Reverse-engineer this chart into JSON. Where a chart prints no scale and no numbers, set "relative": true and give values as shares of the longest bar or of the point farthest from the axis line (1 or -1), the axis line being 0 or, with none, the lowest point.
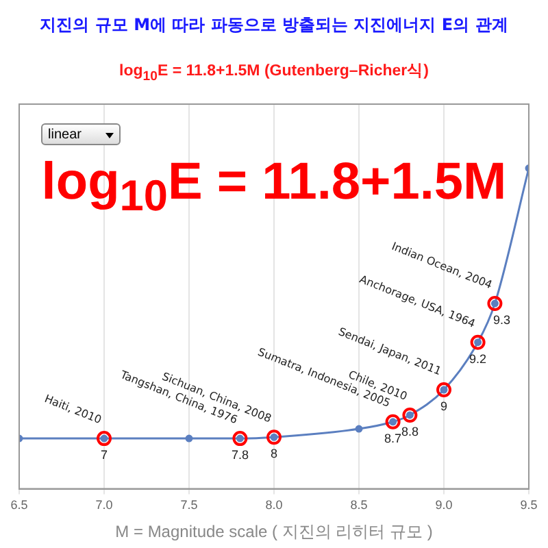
{
  "chart_data": {
    "type": "line",
    "title": "지진의 규모 M에 따라 파동으로 방출되는 지진에너지 E의 관계",
    "subtitle": "log$_{10}$E = 11.8+1.5M (Gutenberg–Richer식)",
    "xlabel": "M = Magnitude scale ( 지진의 리히터 규모 )",
    "relative": true,
    "xlim": [
      6.5,
      9.5
    ],
    "xticks": [
      6.5,
      {
        "value": 7,
        "label": "7.0"
      },
      7.5,
      {
        "value": 8,
        "label": "8.0"
      },
      8.5,
      {
        "value": 9,
        "label": "9.0"
      },
      9.5
    ],
    "grid": "x",
    "legend": false,
    "series": [
      {
        "color": "#5b7fc0",
        "marker": "circle",
        "x": [
          6.5,
          7,
          7.5,
          7.8,
          8,
          8.5,
          8.7,
          8.8,
          9,
          9.2,
          9.3,
          9.5
        ],
        "values": [
          0.157,
          0.157,
          0.157,
          0.157,
          0.161,
          0.187,
          0.209,
          0.23,
          0.309,
          0.457,
          0.578,
          1
        ]
      },
      {
        "type": "scatter",
        "color": "#ff0000",
        "marker": "circle",
        "x": [
          7,
          7.8,
          8,
          8.7,
          8.8,
          9,
          9.2,
          9.3
        ],
        "values": [
          0.157,
          0.157,
          0.161,
          0.209,
          0.23,
          0.309,
          0.457,
          0.578
        ]
      }
    ],
    "annotations": [
      "log$_{10}$E = 11.8+1.5M",
      "linear",
      {
        "text": "Haiti, 2010",
        "x": 7,
        "y": 0.157
      },
      {
        "text": "Tangshan, China, 1976",
        "x": 7.8,
        "y": 0.157
      },
      {
        "text": "Sichuan, China, 2008",
        "x": 8,
        "y": 0.161
      },
      {
        "text": "Sumatra, Indonesia, 2005",
        "x": 8.7,
        "y": 0.209
      },
      {
        "text": "Chile, 2010",
        "x": 8.8,
        "y": 0.23
      },
      {
        "text": "Sendai, Japan, 2011",
        "x": 9,
        "y": 0.309
      },
      {
        "text": "Anchorage, USA, 1964",
        "x": 9.2,
        "y": 0.457
      },
      {
        "text": "Indian Ocean, 2004",
        "x": 9.3,
        "y": 0.578
      },
      {
        "text": "7",
        "x": 7,
        "y": 0.157
      },
      {
        "text": "7.8",
        "x": 7.8,
        "y": 0.157
      },
      {
        "text": "8",
        "x": 8,
        "y": 0.161
      },
      {
        "text": "8.7",
        "x": 8.7,
        "y": 0.209
      },
      {
        "text": "8.8",
        "x": 8.8,
        "y": 0.23
      },
      {
        "text": "9",
        "x": 9,
        "y": 0.309
      },
      {
        "text": "9.2",
        "x": 9.2,
        "y": 0.457
      },
      {
        "text": "9.3",
        "x": 9.3,
        "y": 0.578
      }
    ]
  }
}
